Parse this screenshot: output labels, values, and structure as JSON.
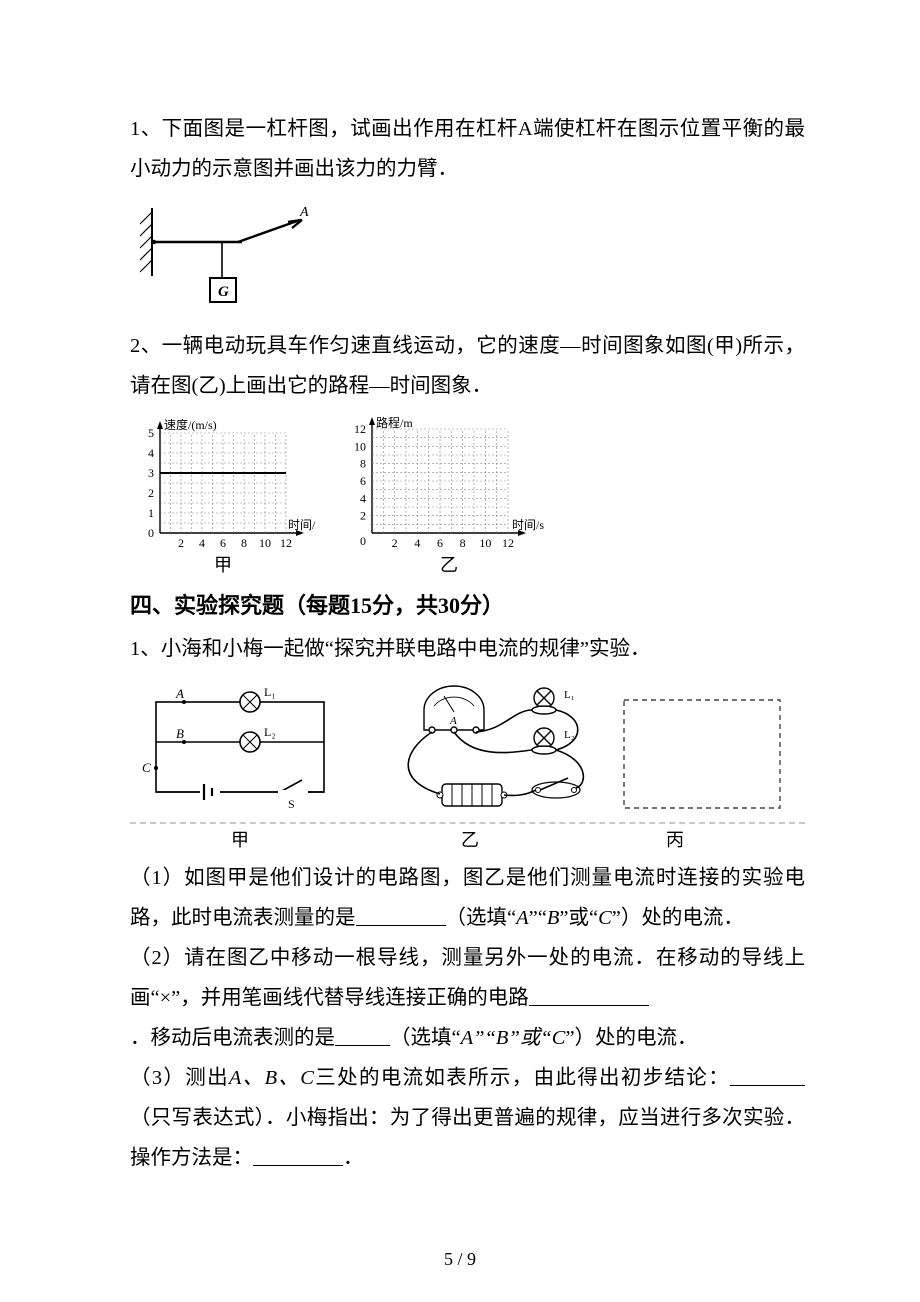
{
  "q1": "1、下面图是一杠杆图，试画出作用在杠杆A端使杠杆在图示位置平衡的最小动力的示意图并画出该力的力臂．",
  "q2": "2、一辆电动玩具车作匀速直线运动，它的速度—时间图象如图(甲)所示，请在图(乙)上画出它的路程—时间图象．",
  "section4_title": "四、实验探究题（每题15分，共30分）",
  "q4_1_intro": "1、小海和小梅一起做“探究并联电路中电流的规律”实验．",
  "q4_1_p1a": "（1）如图甲是他们设计的电路图，图乙是他们测量电流时连接的实验电路，此时电流表测量的是",
  "q4_1_p1b": "（选填“",
  "q4_1_optA": "A",
  "q4_1_sep1": "”“",
  "q4_1_optB": "B",
  "q4_1_sep2": "”或“",
  "q4_1_optC": "C",
  "q4_1_p1c": "”）处的电流．",
  "q4_1_p2a": "（2）请在图乙中移动一根导线，测量另外一处的电流．在移动的导线上画“×”，并用笔画线代替导线连接正确的电路",
  "q4_1_p2b": "．移动后电流表测的是",
  "q4_1_p2c": "（选填“",
  "q4_1_p2opts": "A”“B”或“C",
  "q4_1_p2d": "”）处的电流．",
  "q4_1_p3a": "（3）测出",
  "q4_1_p3_vars": "A、B、C",
  "q4_1_p3b": "三处的电流如表所示，由此得出初步结论：",
  "q4_1_p3c": "（只写表达式）．小梅指出：为了得出更普遍的规律，应当进行多次实验．操作方法是：",
  "q4_1_p3d": "．",
  "lever": {
    "label_A": "A",
    "label_G": "G",
    "colors": {
      "stroke": "#000000",
      "fill_box": "#ffffff"
    }
  },
  "chart_v": {
    "ylabel": "速度/(m/s)",
    "xlabel": "时间/s",
    "ylim": [
      0,
      5
    ],
    "xlim": [
      0,
      12
    ],
    "yticks": [
      0,
      1,
      2,
      3,
      4,
      5
    ],
    "xticks": [
      2,
      4,
      6,
      8,
      10,
      12
    ],
    "line_y": 3,
    "grid_color": "#888888",
    "axis_color": "#000000",
    "grid_dash": "2,2",
    "fontsize": 12,
    "caption": "甲"
  },
  "chart_s": {
    "ylabel": "路程/m",
    "xlabel": "时间/s",
    "ylim": [
      0,
      12
    ],
    "xlim": [
      0,
      12
    ],
    "yticks": [
      2,
      4,
      6,
      8,
      10,
      12
    ],
    "xticks": [
      2,
      4,
      6,
      8,
      10,
      12
    ],
    "grid_color": "#888888",
    "axis_color": "#000000",
    "grid_dash": "2,2",
    "fontsize": 12,
    "caption": "乙"
  },
  "circuit": {
    "caption_left": "甲",
    "caption_mid": "乙",
    "caption_right": "丙",
    "labels": {
      "A": "A",
      "B": "B",
      "C": "C",
      "L1": "L₁",
      "L2": "L₂",
      "S": "S"
    },
    "dashed_color": "#444444",
    "stroke": "#000000"
  },
  "page_number": "5 / 9"
}
